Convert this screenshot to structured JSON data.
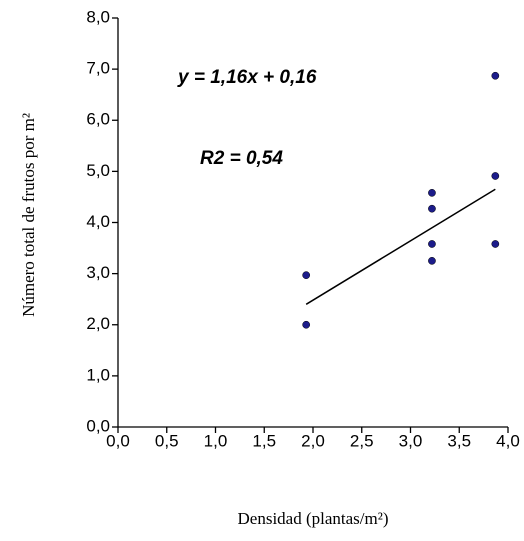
{
  "chart_data": {
    "type": "scatter",
    "x_label": "Densidad (plantas/m²)",
    "y_label": "Número total de frutos por m²",
    "annotations": [
      "y = 1,16x + 0,16",
      "R2 = 0,54"
    ],
    "x": [
      1.93,
      1.93,
      3.22,
      3.22,
      3.22,
      3.22,
      3.87,
      3.87,
      3.87
    ],
    "values": [
      2.97,
      2.0,
      4.58,
      4.27,
      3.58,
      3.25,
      6.87,
      4.91,
      3.58
    ],
    "color": "#1c1c8a",
    "trendline": {
      "x": [
        1.93,
        3.87
      ],
      "values": [
        2.4,
        4.65
      ],
      "color": "#000000"
    },
    "xlim": [
      0,
      4
    ],
    "ylim": [
      0,
      8
    ],
    "xticks": [
      {
        "value": 0,
        "label": "0,0"
      },
      {
        "value": 0.5,
        "label": "0,5"
      },
      {
        "value": 1,
        "label": "1,0"
      },
      {
        "value": 1.5,
        "label": "1,5"
      },
      {
        "value": 2,
        "label": "2,0"
      },
      {
        "value": 2.5,
        "label": "2,5"
      },
      {
        "value": 3,
        "label": "3,0"
      },
      {
        "value": 3.5,
        "label": "3,5"
      },
      {
        "value": 4,
        "label": "4,0"
      }
    ],
    "yticks": [
      {
        "value": 0,
        "label": "0,0"
      },
      {
        "value": 1,
        "label": "1,0"
      },
      {
        "value": 2,
        "label": "2,0"
      },
      {
        "value": 3,
        "label": "3,0"
      },
      {
        "value": 4,
        "label": "4,0"
      },
      {
        "value": 5,
        "label": "5,0"
      },
      {
        "value": 6,
        "label": "6,0"
      },
      {
        "value": 7,
        "label": "7,0"
      },
      {
        "value": 8,
        "label": "8,0"
      }
    ]
  }
}
